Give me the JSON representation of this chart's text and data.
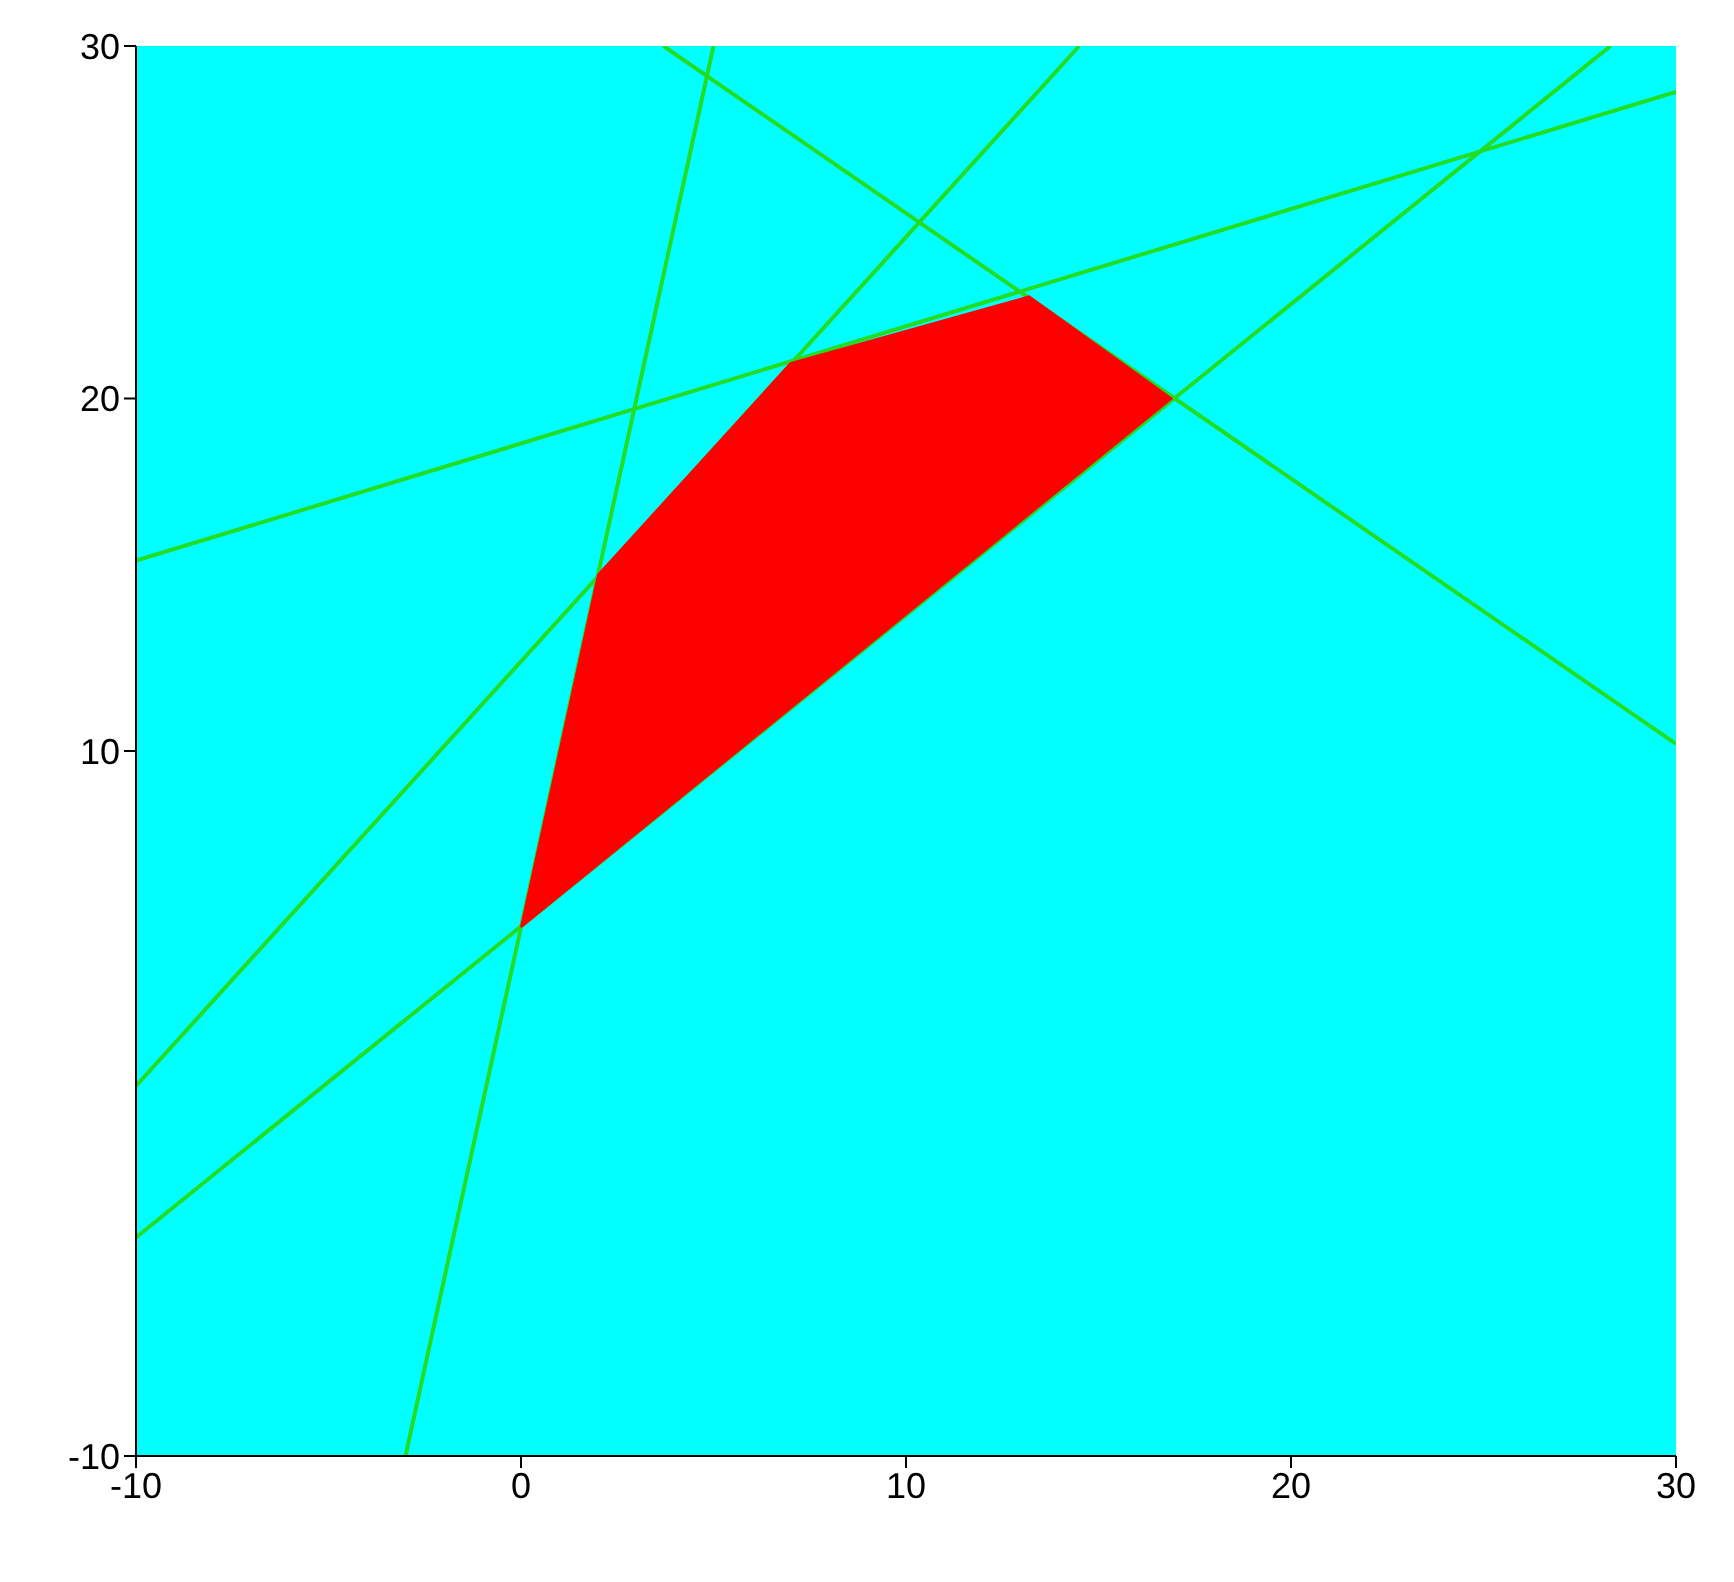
{
  "chart_data": {
    "type": "line",
    "xlim": [
      -10,
      30
    ],
    "ylim": [
      -10,
      30
    ],
    "xticks": [
      -10,
      0,
      10,
      20,
      30
    ],
    "yticks": [
      -10,
      10,
      20,
      30
    ],
    "grid": false,
    "marker": "none",
    "series": [
      {
        "type": "area",
        "color": "#ff0000",
        "x": [
          0,
          2,
          7,
          13.2,
          16.9,
          0
        ],
        "values": [
          5,
          15,
          21,
          22.9,
          20,
          5
        ]
      },
      {
        "color": "#22dd22",
        "x": [
          -10,
          28.3
        ],
        "values": [
          -3.8,
          30
        ]
      },
      {
        "color": "#22dd22",
        "x": [
          -3,
          5
        ],
        "values": [
          -10,
          30
        ]
      },
      {
        "color": "#22dd22",
        "x": [
          -10,
          14.5
        ],
        "values": [
          0.5,
          30
        ]
      },
      {
        "color": "#22dd22",
        "x": [
          -10,
          30
        ],
        "values": [
          15.4,
          28.7
        ]
      },
      {
        "color": "#22dd22",
        "x": [
          3.7,
          30
        ],
        "values": [
          30,
          10.2
        ]
      }
    ]
  }
}
